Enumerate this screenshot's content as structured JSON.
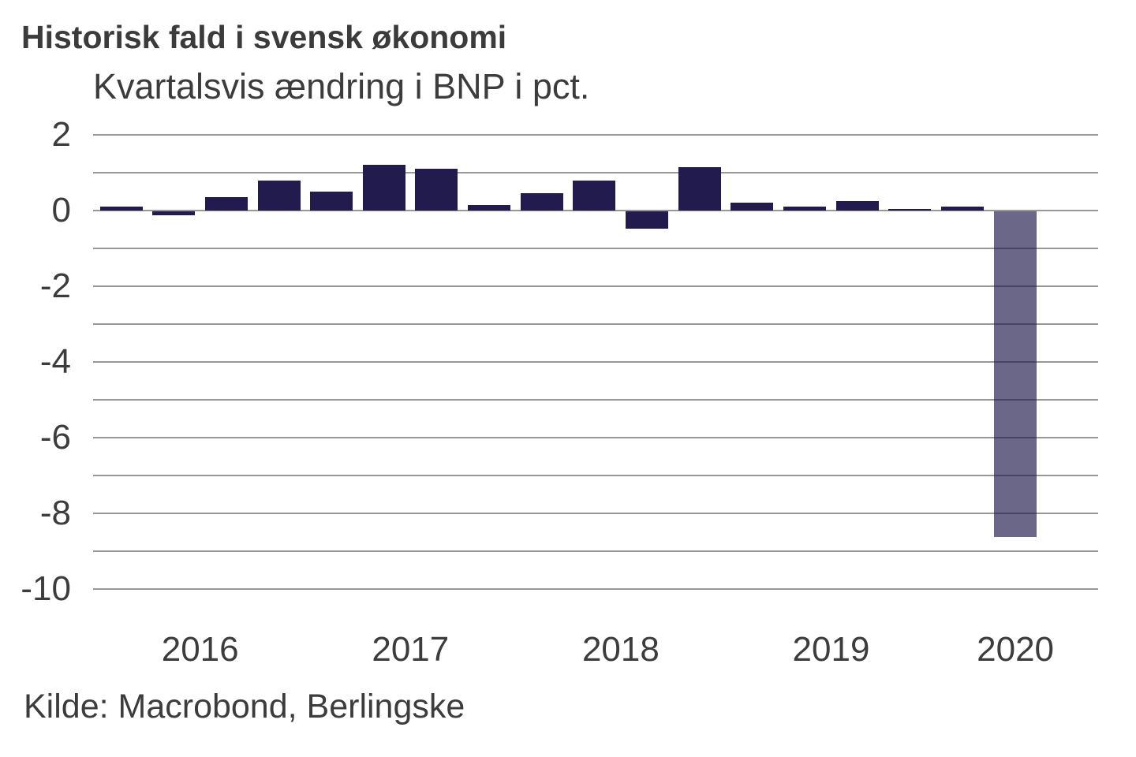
{
  "header": {
    "title": "Historisk fald i svensk økonomi",
    "subtitle": "Kvartalsvis ændring i BNP i pct."
  },
  "source": "Kilde: Macrobond, Berlingske",
  "colors": {
    "bar_dark": "#211b4e",
    "bar_light": "#6a6589",
    "bar_light_rgba": "rgba(30,24,76,0.66)",
    "gridline": "#989898",
    "text": "#3c3c3c"
  },
  "chart_data": {
    "type": "bar",
    "title": "Historisk fald i svensk økonomi",
    "subtitle": "Kvartalsvis ændring i BNP i pct.",
    "xlabel": "",
    "ylabel": "",
    "categories": [
      "2016 Q1",
      "2016 Q2",
      "2016 Q3",
      "2016 Q4",
      "2017 Q1",
      "2017 Q2",
      "2017 Q3",
      "2017 Q4",
      "2018 Q1",
      "2018 Q2",
      "2018 Q3",
      "2018 Q4",
      "2019 Q1",
      "2019 Q2",
      "2019 Q3",
      "2019 Q4",
      "2020 Q1",
      "2020 Q2"
    ],
    "values": [
      0.1,
      -0.1,
      0.35,
      0.8,
      0.5,
      1.2,
      1.1,
      0.15,
      0.45,
      0.8,
      -0.45,
      1.15,
      0.2,
      0.1,
      0.25,
      0.05,
      0.1,
      -8.6
    ],
    "ylim": [
      -10,
      2
    ],
    "grid": "horizontal",
    "gridline_step": 1,
    "ytick_labels": [
      "2",
      "0",
      "-2",
      "-4",
      "-6",
      "-8",
      "-10"
    ],
    "ytick_values": [
      2,
      0,
      -2,
      -4,
      -6,
      -8,
      -10
    ],
    "x_year_labels": [
      "2016",
      "2017",
      "2018",
      "2019",
      "2020"
    ],
    "legend_position": "none",
    "highlighted_bar": "2020 Q2"
  }
}
